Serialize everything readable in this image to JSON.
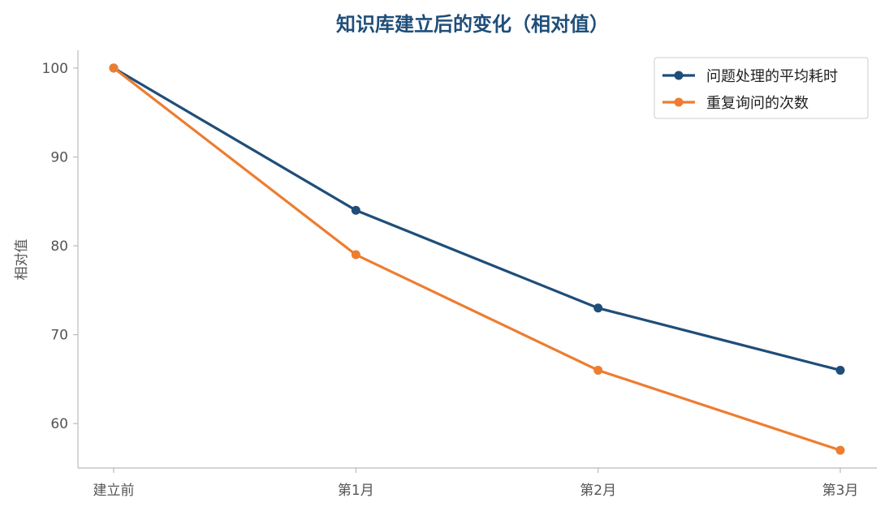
{
  "chart_data": {
    "type": "line",
    "title": "知识库建立后的变化（相对值）",
    "xlabel": "",
    "ylabel": "相对值",
    "categories": [
      "建立前",
      "第1月",
      "第2月",
      "第3月"
    ],
    "ylim": [
      55,
      102
    ],
    "yticks": [
      60,
      70,
      80,
      90,
      100
    ],
    "grid": false,
    "legend_position": "top-right",
    "series": [
      {
        "name": "问题处理的平均耗时",
        "values": [
          100,
          84,
          73,
          66
        ],
        "color": "#1f4e79"
      },
      {
        "name": "重复询问的次数",
        "values": [
          100,
          79,
          66,
          57
        ],
        "color": "#ed7d31"
      }
    ],
    "title_color": "#1f4e79"
  }
}
